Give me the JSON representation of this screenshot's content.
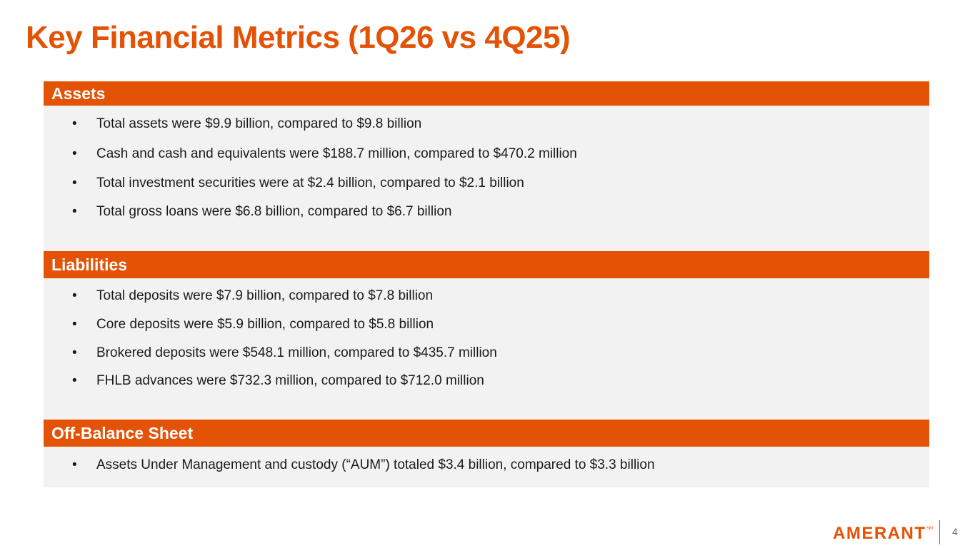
{
  "title": "Key Financial Metrics (1Q26 vs 4Q25)",
  "sections": [
    {
      "header": "Assets",
      "items": [
        "Total assets were $9.9 billion, compared to $9.8 billion",
        "Cash and cash and equivalents were $188.7 million, compared to $470.2 million",
        "Total investment securities were at $2.4 billion, compared to $2.1 billion",
        "Total gross loans were $6.8 billion, compared to $6.7 billion"
      ]
    },
    {
      "header": "Liabilities",
      "items": [
        "Total deposits were $7.9 billion, compared to $7.8 billion",
        "Core deposits were $5.9 billion, compared to $5.8 billion",
        "Brokered deposits were $548.1 million, compared to $435.7 million",
        "FHLB advances were $732.3 million, compared to $712.0 million"
      ]
    },
    {
      "header": "Off-Balance Sheet",
      "items": [
        "Assets Under Management and custody (“AUM”) totaled $3.4 billion, compared to $3.3 billion"
      ]
    }
  ],
  "bullet_glyph": "•",
  "footer": {
    "logo_text": "AMERANT",
    "logo_mark": "SM",
    "page_number": "4"
  },
  "colors": {
    "brand_orange": "#E35205",
    "panel_gray": "#f2f2f2"
  }
}
